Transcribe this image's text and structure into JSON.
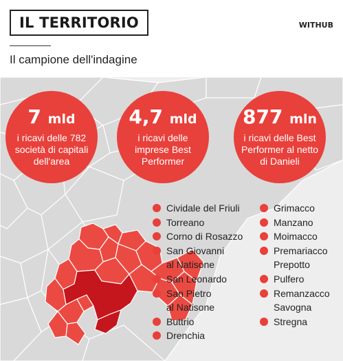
{
  "header": {
    "title": "IL TERRITORIO",
    "brand": "WITHUB",
    "subtitle": "Il campione dell'indagine"
  },
  "colors": {
    "accent": "#e8403b",
    "map_region": "#eb4a42",
    "map_core": "#c4161c",
    "map_background": "#d9d9d9"
  },
  "stats": [
    {
      "value": "7",
      "unit": "mld",
      "description": "i ricavi delle 782 società di capitali dell'area"
    },
    {
      "value": "4,7",
      "unit": "mld",
      "description": "i ricavi delle imprese Best Performer"
    },
    {
      "value": "877",
      "unit": "mln",
      "description": "i ricavi delle Best Performer al netto di Danieli"
    }
  ],
  "municipalities_left": [
    {
      "line1": "Cividale del Friuli"
    },
    {
      "line1": "Torreano"
    },
    {
      "line1": "Corno di Rosazzo"
    },
    {
      "line1": "San Giovanni",
      "line2": "al Natisone"
    },
    {
      "line1": "San Leonardo"
    },
    {
      "line1": "San Pietro",
      "line2": "al Natisone"
    },
    {
      "line1": "Buttrio"
    },
    {
      "line1": "Drenchia"
    }
  ],
  "municipalities_right": [
    {
      "line1": "Grimacco"
    },
    {
      "line1": "Manzano"
    },
    {
      "line1": "Moimacco"
    },
    {
      "line1": "Premariacco"
    },
    {
      "line1": "Prepotto"
    },
    {
      "line1": "Pulfero"
    },
    {
      "line1": "Remanzacco"
    },
    {
      "line1": "Savogna"
    },
    {
      "line1": "Stregna"
    }
  ]
}
